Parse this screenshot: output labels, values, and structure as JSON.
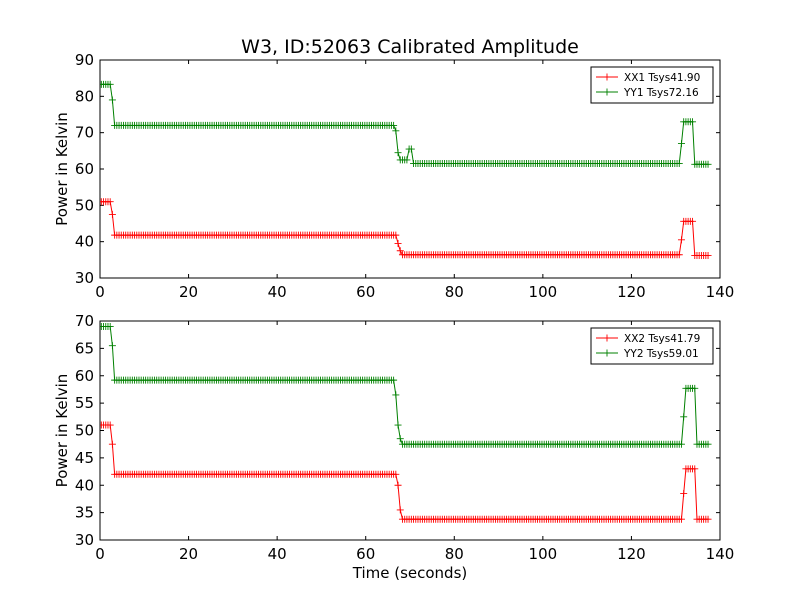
{
  "figure_title": "W3, ID:52063 Calibrated Amplitude",
  "xlabel": "Time (seconds)",
  "chart_data": [
    {
      "type": "line",
      "title": "W3, ID:52063 Calibrated Amplitude",
      "xlabel": "",
      "ylabel": "Power in Kelvin",
      "xlim": [
        0,
        140
      ],
      "ylim": [
        30,
        90
      ],
      "xticks": [
        0,
        20,
        40,
        60,
        80,
        100,
        120,
        140
      ],
      "yticks": [
        30,
        40,
        50,
        60,
        70,
        80,
        90
      ],
      "grid": false,
      "legend_position": "top-right",
      "marker": "+",
      "series": [
        {
          "name": "XX1 Tsys41.90",
          "color": "#ff0000",
          "segments": [
            {
              "x_start": 0.3,
              "x_end": 2.3,
              "value": 51
            },
            {
              "x_start": 2.8,
              "x_end": 2.8,
              "value": 47.5
            },
            {
              "x_start": 3.3,
              "x_end": 66.8,
              "value": 41.8
            },
            {
              "x_start": 67.3,
              "x_end": 67.3,
              "value": 39.5
            },
            {
              "x_start": 67.8,
              "x_end": 67.8,
              "value": 37.5
            },
            {
              "x_start": 68.3,
              "x_end": 130.8,
              "value": 36.4
            },
            {
              "x_start": 131.3,
              "x_end": 131.3,
              "value": 40.5
            },
            {
              "x_start": 131.8,
              "x_end": 133.8,
              "value": 45.6
            },
            {
              "x_start": 134.3,
              "x_end": 137.3,
              "value": 36.2
            }
          ]
        },
        {
          "name": "YY1 Tsys72.16",
          "color": "#008000",
          "segments": [
            {
              "x_start": 0.3,
              "x_end": 2.3,
              "value": 83.3
            },
            {
              "x_start": 2.8,
              "x_end": 2.8,
              "value": 79
            },
            {
              "x_start": 3.3,
              "x_end": 66.3,
              "value": 72
            },
            {
              "x_start": 66.8,
              "x_end": 66.8,
              "value": 70.5
            },
            {
              "x_start": 67.3,
              "x_end": 67.3,
              "value": 64.5
            },
            {
              "x_start": 67.8,
              "x_end": 69.3,
              "value": 62.5
            },
            {
              "x_start": 69.8,
              "x_end": 70.3,
              "value": 65.5
            },
            {
              "x_start": 70.8,
              "x_end": 130.8,
              "value": 61.5
            },
            {
              "x_start": 131.3,
              "x_end": 131.3,
              "value": 67
            },
            {
              "x_start": 131.8,
              "x_end": 133.8,
              "value": 73
            },
            {
              "x_start": 134.3,
              "x_end": 137.3,
              "value": 61.3
            }
          ]
        }
      ]
    },
    {
      "type": "line",
      "title": "",
      "xlabel": "Time (seconds)",
      "ylabel": "Power in Kelvin",
      "xlim": [
        0,
        140
      ],
      "ylim": [
        30,
        70
      ],
      "xticks": [
        0,
        20,
        40,
        60,
        80,
        100,
        120,
        140
      ],
      "yticks": [
        30,
        35,
        40,
        45,
        50,
        55,
        60,
        65,
        70
      ],
      "grid": false,
      "legend_position": "top-right",
      "marker": "+",
      "series": [
        {
          "name": "XX2 Tsys41.79",
          "color": "#ff0000",
          "segments": [
            {
              "x_start": 0.3,
              "x_end": 2.3,
              "value": 51
            },
            {
              "x_start": 2.8,
              "x_end": 2.8,
              "value": 47.5
            },
            {
              "x_start": 3.3,
              "x_end": 66.8,
              "value": 42
            },
            {
              "x_start": 67.3,
              "x_end": 67.3,
              "value": 40
            },
            {
              "x_start": 67.8,
              "x_end": 67.8,
              "value": 35.5
            },
            {
              "x_start": 68.3,
              "x_end": 131.3,
              "value": 33.8
            },
            {
              "x_start": 131.8,
              "x_end": 131.8,
              "value": 38.5
            },
            {
              "x_start": 132.3,
              "x_end": 134.3,
              "value": 43
            },
            {
              "x_start": 134.8,
              "x_end": 137.3,
              "value": 33.8
            }
          ]
        },
        {
          "name": "YY2 Tsys59.01",
          "color": "#008000",
          "segments": [
            {
              "x_start": 0.3,
              "x_end": 2.3,
              "value": 69
            },
            {
              "x_start": 2.8,
              "x_end": 2.8,
              "value": 65.5
            },
            {
              "x_start": 3.3,
              "x_end": 66.3,
              "value": 59.2
            },
            {
              "x_start": 66.8,
              "x_end": 66.8,
              "value": 56.5
            },
            {
              "x_start": 67.3,
              "x_end": 67.3,
              "value": 51
            },
            {
              "x_start": 67.8,
              "x_end": 67.8,
              "value": 48.5
            },
            {
              "x_start": 68.3,
              "x_end": 131.3,
              "value": 47.5
            },
            {
              "x_start": 131.8,
              "x_end": 131.8,
              "value": 52.5
            },
            {
              "x_start": 132.3,
              "x_end": 134.3,
              "value": 57.7
            },
            {
              "x_start": 134.8,
              "x_end": 137.3,
              "value": 47.5
            }
          ]
        }
      ]
    }
  ]
}
